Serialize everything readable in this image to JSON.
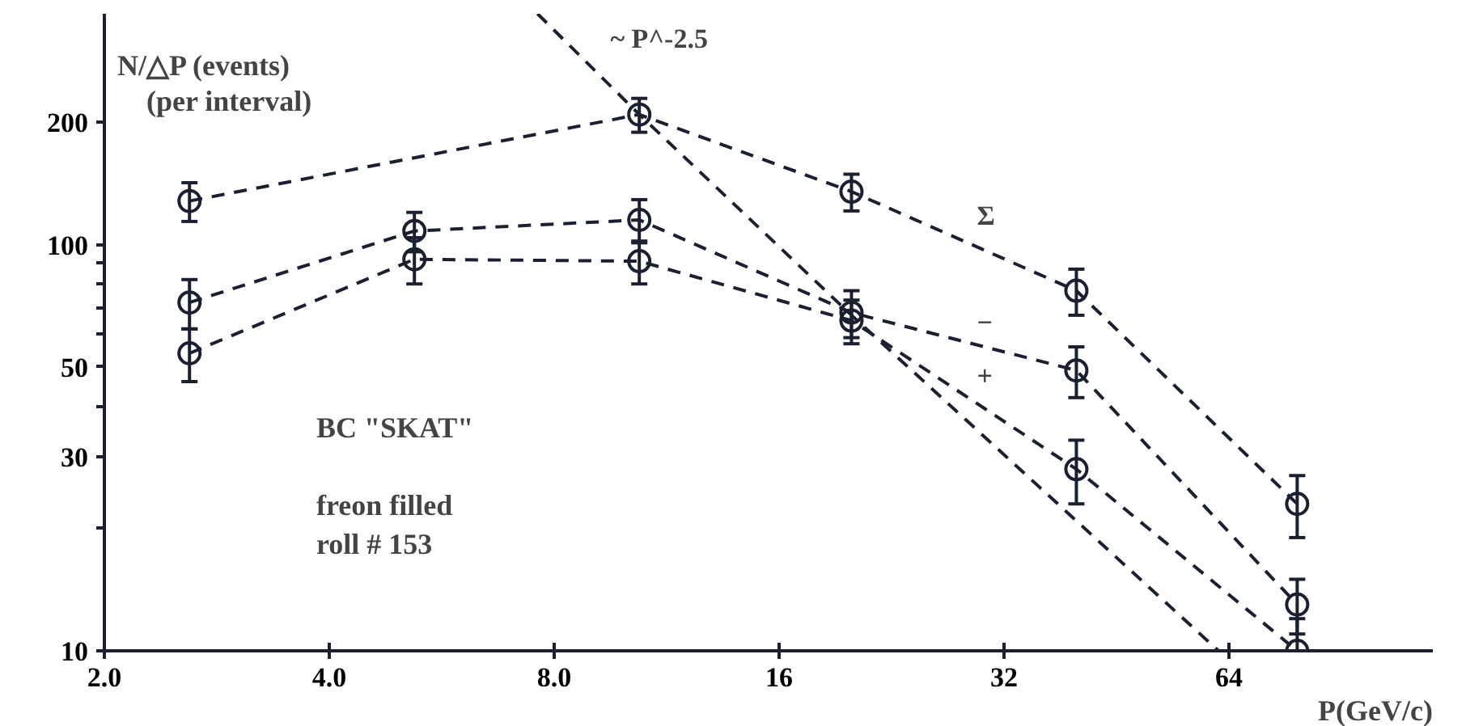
{
  "chart_data": {
    "type": "line",
    "xlabel": "P(GeV/c)",
    "ylabel": "N/△P (events)\n(per interval)",
    "log": "xy",
    "xlim": [
      2,
      120
    ],
    "ylim": [
      10,
      370
    ],
    "xticks": [
      {
        "value": 2,
        "label": "2.0"
      },
      {
        "value": 4,
        "label": "4.0"
      },
      {
        "value": 8,
        "label": "8.0"
      },
      16,
      32,
      64
    ],
    "yticks": [
      10,
      {
        "value": 20,
        "label": null
      },
      30,
      {
        "value": 40,
        "label": null
      },
      50,
      {
        "value": 60,
        "label": null
      },
      {
        "value": 70,
        "label": null
      },
      {
        "value": 80,
        "label": null
      },
      {
        "value": 90,
        "label": null
      },
      100,
      200
    ],
    "grid": false,
    "marker": "circle",
    "line_style": "dashed",
    "series": [
      {
        "name": "Σ",
        "color": "#1a2030",
        "x": [
          2.6,
          10.4,
          20,
          40,
          79
        ],
        "values": [
          128,
          209,
          135,
          77,
          23
        ],
        "errors": [
          14,
          20,
          14,
          10,
          4
        ]
      },
      {
        "name": "−",
        "color": "#1a2030",
        "x": [
          2.6,
          5.2,
          10.4,
          20,
          40,
          79
        ],
        "values": [
          72,
          108,
          115,
          68,
          49,
          13
        ],
        "errors": [
          10,
          12,
          14,
          9,
          7,
          2
        ]
      },
      {
        "name": "+",
        "color": "#1a2030",
        "x": [
          2.6,
          5.2,
          10.4,
          20,
          40,
          79
        ],
        "values": [
          54,
          92,
          91,
          65,
          28,
          10
        ],
        "errors": [
          8,
          12,
          11,
          8,
          5,
          2
        ]
      },
      {
        "name": "~ P^-2.5",
        "color": "#1a2030",
        "type": "line",
        "marker": "none",
        "x": [
          7.6,
          10.4,
          20,
          62
        ],
        "values": [
          370,
          209,
          67,
          10
        ]
      }
    ],
    "annotations": [
      "BC \"SKAT\"",
      "freon filled",
      "roll # 153"
    ]
  }
}
